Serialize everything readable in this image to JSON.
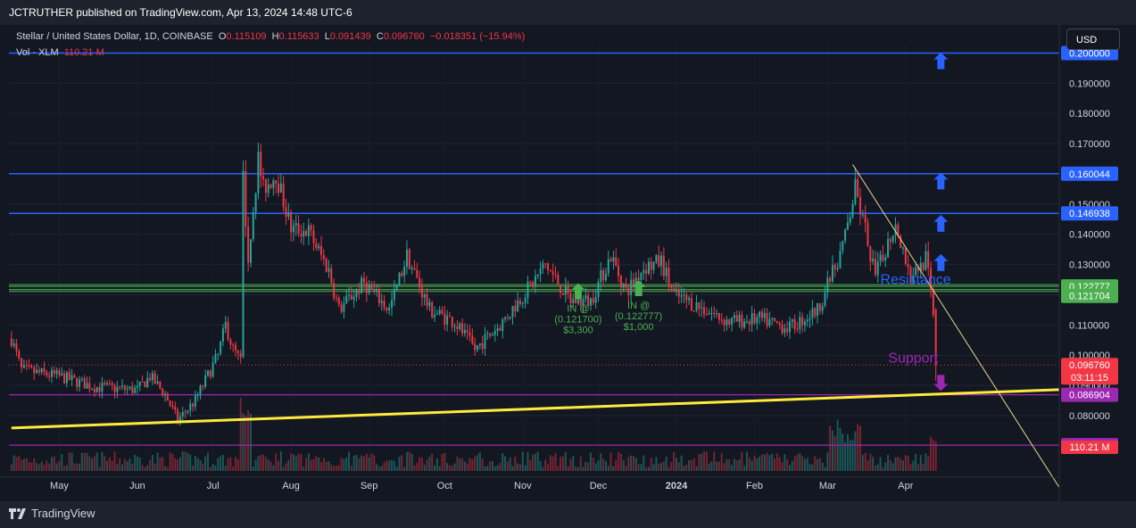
{
  "header": {
    "publisher_line": "JCTRUTHER published on TradingView.com, Apr 13, 2024 14:48 UTC-6"
  },
  "footer": {
    "brand": "TradingView"
  },
  "toolbar": {
    "currency_button": "USD"
  },
  "legend": {
    "symbol": "Stellar / United States Dollar, 1D, COINBASE",
    "o_label": "O",
    "o_value": "0.115109",
    "h_label": "H",
    "h_value": "0.115633",
    "l_label": "L",
    "l_value": "0.091439",
    "c_label": "C",
    "c_value": "0.096760",
    "change": "−0.018351 (−15.94%)",
    "vol_label": "Vol · XLM",
    "vol_value": "110.21 M"
  },
  "colors": {
    "background": "#131722",
    "up": "#26a69a",
    "down": "#f23645",
    "hline": "#2962ff",
    "green_line": "#4caf50",
    "purple_line": "#9c27b0",
    "trendline": "#ffeb3b",
    "arrow": "#2962ff"
  },
  "chart_data": {
    "type": "candlestick",
    "symbol": "XLM/USD",
    "y_axis": {
      "min": 0.065,
      "max": 0.205,
      "ticks": [
        "0.080000",
        "0.090000",
        "0.100000",
        "0.110000",
        "0.120000",
        "0.130000",
        "0.140000",
        "0.150000",
        "0.160000",
        "0.170000",
        "0.180000",
        "0.190000",
        "0.200000"
      ]
    },
    "x_axis": {
      "ticks": [
        "May",
        "Jun",
        "Jul",
        "Aug",
        "Sep",
        "Oct",
        "Nov",
        "Dec",
        "2024",
        "Feb",
        "Mar",
        "Apr"
      ],
      "start": "2023-04-12",
      "end": "2024-04-13"
    },
    "horizontal_levels": [
      {
        "label": "0.200000",
        "value": 0.2,
        "color": "#2962ff"
      },
      {
        "label": "0.160044",
        "value": 0.160044,
        "color": "#2962ff"
      },
      {
        "label": "0.146938",
        "value": 0.146938,
        "color": "#2962ff"
      },
      {
        "label": "0.122777",
        "value": 0.122777,
        "color": "#4caf50"
      },
      {
        "label": "0.121704",
        "value": 0.121704,
        "color": "#4caf50"
      },
      {
        "label": "0.086904",
        "value": 0.086904,
        "color": "#9c27b0"
      },
      {
        "label": "0.070231",
        "value": 0.070231,
        "color": "#9c27b0"
      }
    ],
    "current_price": {
      "label": "0.096760",
      "countdown": "03:11:15",
      "value": 0.09676
    },
    "volume_badge": "110.21 M",
    "trendlines": [
      {
        "name": "support",
        "from": {
          "date": "2023-04-12",
          "value": 0.0759
        },
        "to": {
          "date": "2024-04-13",
          "value": 0.0871
        }
      },
      {
        "name": "resistance",
        "from": {
          "date": "2024-03-11",
          "value": 0.1631
        },
        "to": {
          "date": "2024-04-13",
          "value": 0.1201
        }
      }
    ],
    "annotations": [
      {
        "text": "Resistance",
        "date": "2024-04-05",
        "value": 0.1235
      },
      {
        "text": "Support",
        "date": "2024-04-04",
        "value": 0.0975
      },
      {
        "lines": [
          "IN @",
          "(0.121700)",
          "$3,300"
        ],
        "date": "2023-11-23",
        "value": 0.1215
      },
      {
        "lines": [
          "IN @",
          "(0.122777)",
          "$1,000"
        ],
        "date": "2023-12-17",
        "value": 0.1225
      }
    ],
    "anchors": [
      {
        "date": "2023-04-12",
        "value": 0.1055
      },
      {
        "date": "2023-04-16",
        "value": 0.095
      },
      {
        "date": "2023-05-01",
        "value": 0.093
      },
      {
        "date": "2023-05-15",
        "value": 0.0895
      },
      {
        "date": "2023-06-01",
        "value": 0.0885
      },
      {
        "date": "2023-06-06",
        "value": 0.093
      },
      {
        "date": "2023-06-12",
        "value": 0.087
      },
      {
        "date": "2023-06-17",
        "value": 0.0785
      },
      {
        "date": "2023-06-24",
        "value": 0.085
      },
      {
        "date": "2023-07-03",
        "value": 0.1
      },
      {
        "date": "2023-07-06",
        "value": 0.11
      },
      {
        "date": "2023-07-09",
        "value": 0.102
      },
      {
        "date": "2023-07-12",
        "value": 0.098
      },
      {
        "date": "2023-07-13",
        "value": 0.158
      },
      {
        "date": "2023-07-15",
        "value": 0.132
      },
      {
        "date": "2023-07-19",
        "value": 0.165
      },
      {
        "date": "2023-07-21",
        "value": 0.155
      },
      {
        "date": "2023-07-26",
        "value": 0.16
      },
      {
        "date": "2023-08-01",
        "value": 0.142
      },
      {
        "date": "2023-08-08",
        "value": 0.141
      },
      {
        "date": "2023-08-16",
        "value": 0.128
      },
      {
        "date": "2023-08-20",
        "value": 0.115
      },
      {
        "date": "2023-08-30",
        "value": 0.124
      },
      {
        "date": "2023-09-09",
        "value": 0.115
      },
      {
        "date": "2023-09-16",
        "value": 0.133
      },
      {
        "date": "2023-09-25",
        "value": 0.115
      },
      {
        "date": "2023-10-05",
        "value": 0.111
      },
      {
        "date": "2023-10-13",
        "value": 0.102
      },
      {
        "date": "2023-10-23",
        "value": 0.11
      },
      {
        "date": "2023-11-03",
        "value": 0.122
      },
      {
        "date": "2023-11-10",
        "value": 0.13
      },
      {
        "date": "2023-11-20",
        "value": 0.118
      },
      {
        "date": "2023-11-28",
        "value": 0.118
      },
      {
        "date": "2023-12-06",
        "value": 0.133
      },
      {
        "date": "2023-12-12",
        "value": 0.121
      },
      {
        "date": "2023-12-19",
        "value": 0.129
      },
      {
        "date": "2023-12-26",
        "value": 0.131
      },
      {
        "date": "2023-12-31",
        "value": 0.12
      },
      {
        "date": "2024-01-10",
        "value": 0.116
      },
      {
        "date": "2024-01-22",
        "value": 0.111
      },
      {
        "date": "2024-02-03",
        "value": 0.112
      },
      {
        "date": "2024-02-15",
        "value": 0.109
      },
      {
        "date": "2024-02-26",
        "value": 0.115
      },
      {
        "date": "2024-03-04",
        "value": 0.129
      },
      {
        "date": "2024-03-08",
        "value": 0.139
      },
      {
        "date": "2024-03-12",
        "value": 0.155
      },
      {
        "date": "2024-03-16",
        "value": 0.141
      },
      {
        "date": "2024-03-20",
        "value": 0.126
      },
      {
        "date": "2024-03-28",
        "value": 0.144
      },
      {
        "date": "2024-04-03",
        "value": 0.126
      },
      {
        "date": "2024-04-09",
        "value": 0.132
      },
      {
        "date": "2024-04-12",
        "value": 0.115
      },
      {
        "date": "2024-04-13",
        "value": 0.0968
      }
    ]
  }
}
